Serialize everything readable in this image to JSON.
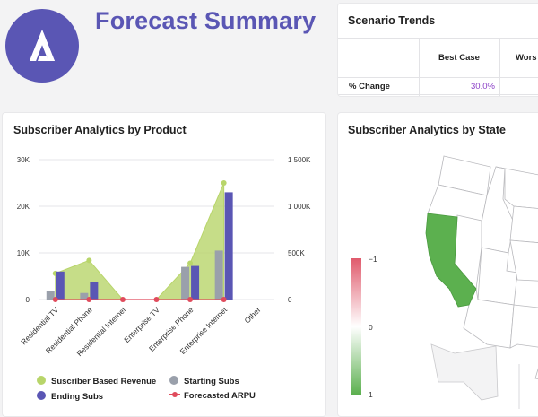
{
  "header": {
    "title": "Forecast Summary",
    "logo_icon": "delta-logo-icon"
  },
  "scenario_trends": {
    "title": "Scenario Trends",
    "columns": [
      "",
      "Best Case",
      "Wors"
    ],
    "rows": [
      {
        "label": "% Change",
        "best_case": "30.0%",
        "worst_case": ""
      }
    ],
    "value_color": "#8b3fc7"
  },
  "subscriber_by_product": {
    "title": "Subscriber Analytics by Product",
    "legend": {
      "revenue": "Suscriber Based Revenue",
      "starting": "Starting Subs",
      "ending": "Ending Subs",
      "arpu": "Forecasted ARPU"
    },
    "colors": {
      "revenue": "#b8d56a",
      "starting": "#9aa0ab",
      "ending": "#5a56b4",
      "arpu": "#e04b5c"
    }
  },
  "chart_data": {
    "type": "bar",
    "categories": [
      "Residential TV",
      "Residential Phone",
      "Residential Internet",
      "Enterprise TV",
      "Enterprise Phone",
      "Enterprise Internet",
      "Other"
    ],
    "left_axis": {
      "ticks": [
        "0",
        "10K",
        "20K",
        "30K"
      ],
      "ylim": [
        0,
        30000
      ]
    },
    "right_axis": {
      "ticks": [
        "0",
        "500K",
        "1 000K",
        "1 500K"
      ],
      "ylim": [
        0,
        1500000
      ]
    },
    "series": [
      {
        "name": "Starting Subs",
        "type": "bar",
        "axis": "left",
        "values": [
          1800,
          1400,
          0,
          0,
          7000,
          10500,
          0
        ]
      },
      {
        "name": "Ending Subs",
        "type": "bar",
        "axis": "left",
        "values": [
          6000,
          3800,
          0,
          0,
          7200,
          23000,
          0
        ]
      },
      {
        "name": "Suscriber Based Revenue",
        "type": "area",
        "axis": "right",
        "values": [
          280000,
          420000,
          0,
          0,
          390000,
          1250000,
          null
        ]
      },
      {
        "name": "Forecasted ARPU",
        "type": "line",
        "axis": "left",
        "values": [
          0,
          0,
          0,
          0,
          0,
          0,
          null
        ]
      }
    ],
    "grid": true
  },
  "subscriber_by_state": {
    "title": "Subscriber Analytics by State",
    "scale_labels": {
      "top": "−1",
      "mid": "0",
      "bottom": "1"
    },
    "colors": {
      "highlight": "#5cb04f",
      "state_fill": "#ffffff",
      "border": "#b9b9bd",
      "scale_top": "#e05a6c",
      "scale_bottom": "#5cb04f"
    }
  }
}
